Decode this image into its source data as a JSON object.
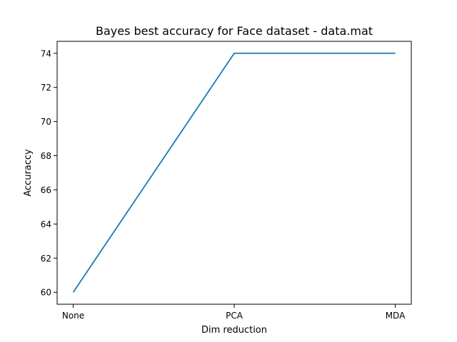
{
  "chart_data": {
    "type": "line",
    "title": "Bayes best accuracy for Face dataset - data.mat",
    "xlabel": "Dim reduction",
    "ylabel": "Accuraccy",
    "categories": [
      "None",
      "PCA",
      "MDA"
    ],
    "series": [
      {
        "values": [
          60,
          74,
          74
        ],
        "color": "#1f77b4"
      }
    ],
    "ylim": [
      59.3,
      74.7
    ],
    "yticks": [
      60,
      62,
      64,
      66,
      68,
      70,
      72,
      74
    ],
    "grid": false
  }
}
